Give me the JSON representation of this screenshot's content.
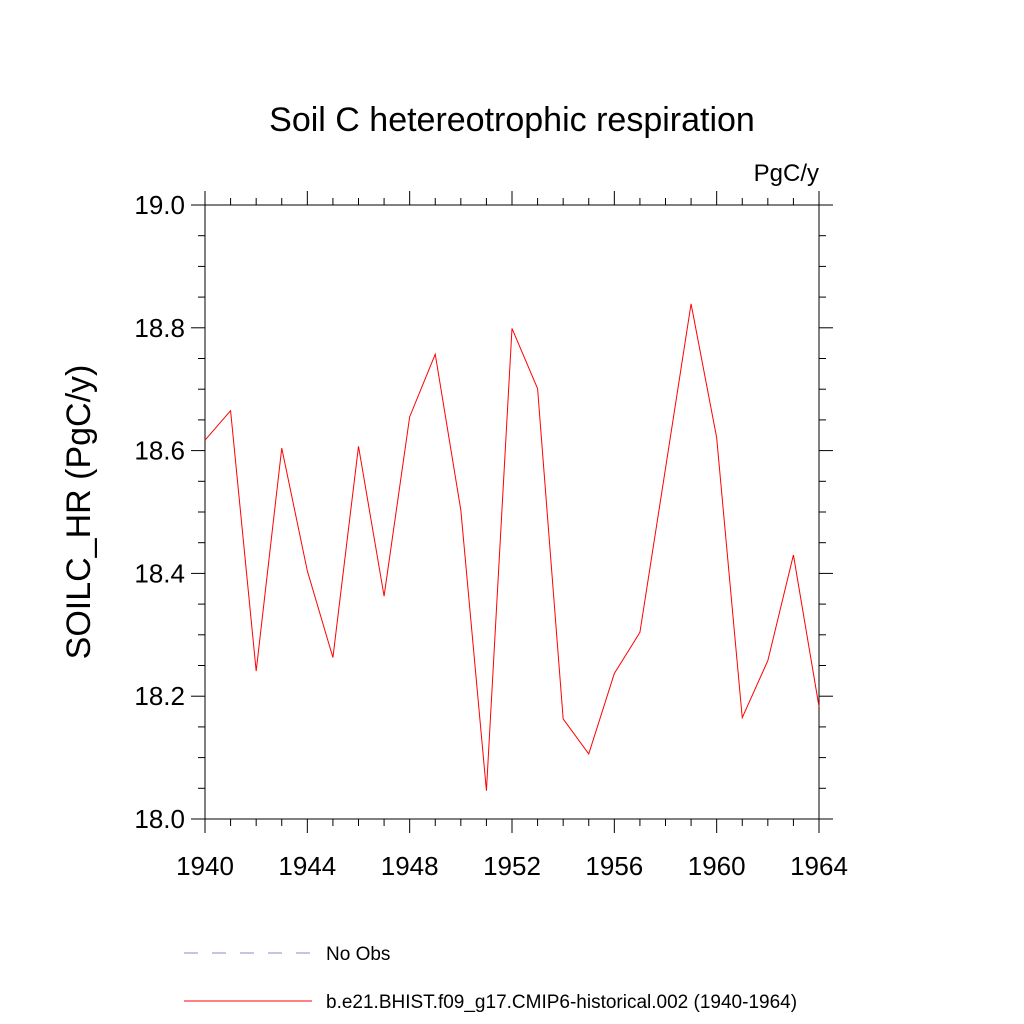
{
  "chart_data": {
    "type": "line",
    "title": "Soil C hetereotrophic respiration",
    "units": "PgC/y",
    "ylabel": "SOILC_HR  (PgC/y)",
    "xlabel": "",
    "xlim": [
      1940,
      1964
    ],
    "ylim": [
      18.0,
      19.0
    ],
    "x_ticks": [
      1940,
      1944,
      1948,
      1952,
      1956,
      1960,
      1964
    ],
    "y_ticks": [
      "18.0",
      "18.2",
      "18.4",
      "18.6",
      "18.8",
      "19.0"
    ],
    "x": [
      1940,
      1941,
      1942,
      1943,
      1944,
      1945,
      1946,
      1947,
      1948,
      1949,
      1950,
      1951,
      1952,
      1953,
      1954,
      1955,
      1956,
      1957,
      1958,
      1959,
      1960,
      1961,
      1962,
      1963,
      1964
    ],
    "series": [
      {
        "name": "b.e21.BHIST.f09_g17.CMIP6-historical.002 (1940-1964)",
        "color": "#ff0000",
        "values": [
          18.617,
          18.665,
          18.241,
          18.604,
          18.404,
          18.263,
          18.607,
          18.363,
          18.655,
          18.757,
          18.503,
          18.046,
          18.799,
          18.701,
          18.163,
          18.106,
          18.237,
          18.304,
          18.571,
          18.839,
          18.621,
          18.165,
          18.258,
          18.43,
          18.183
        ]
      }
    ],
    "legend": {
      "placement": "bottom",
      "entries": [
        {
          "label": "No Obs",
          "color": "#8a8ac8",
          "style": "dashed"
        },
        {
          "label": "b.e21.BHIST.f09_g17.CMIP6-historical.002 (1940-1964)",
          "color": "#ff0000",
          "style": "solid"
        }
      ]
    }
  }
}
